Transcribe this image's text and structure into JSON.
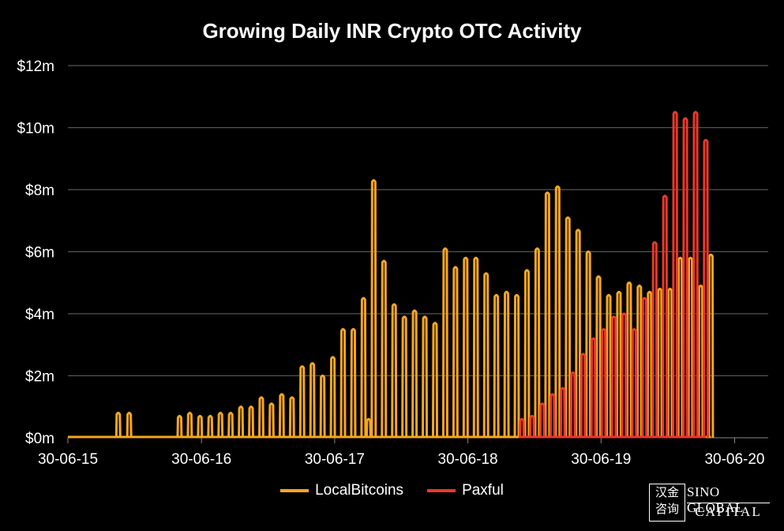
{
  "chart_data": {
    "type": "bar",
    "title": "Growing Daily INR Crypto OTC Activity",
    "y_ticks": [
      "$0m",
      "$2m",
      "$4m",
      "$6m",
      "$8m",
      "$10m",
      "$12m"
    ],
    "ylim": [
      0,
      12
    ],
    "x_ticks": [
      "30-06-15",
      "30-06-16",
      "30-06-17",
      "30-06-18",
      "30-06-19",
      "30-06-20"
    ],
    "xlim": [
      "2015-06-30",
      "2020-09-30"
    ],
    "grid": true,
    "legend_position": "bottom",
    "series": [
      {
        "name": "LocalBitcoins",
        "color": "#f5a623",
        "points": [
          [
            "2015-11-15",
            0.8
          ],
          [
            "2015-12-15",
            0.8
          ],
          [
            "2016-05-01",
            0.7
          ],
          [
            "2016-05-29",
            0.8
          ],
          [
            "2016-06-26",
            0.7
          ],
          [
            "2016-07-24",
            0.7
          ],
          [
            "2016-08-21",
            0.8
          ],
          [
            "2016-09-18",
            0.8
          ],
          [
            "2016-10-16",
            1.0
          ],
          [
            "2016-11-13",
            1.0
          ],
          [
            "2016-12-11",
            1.3
          ],
          [
            "2017-01-08",
            1.1
          ],
          [
            "2017-02-05",
            1.4
          ],
          [
            "2017-03-05",
            1.3
          ],
          [
            "2017-04-02",
            2.3
          ],
          [
            "2017-04-30",
            2.4
          ],
          [
            "2017-05-28",
            2.0
          ],
          [
            "2017-06-25",
            2.6
          ],
          [
            "2017-07-23",
            3.5
          ],
          [
            "2017-08-20",
            3.5
          ],
          [
            "2017-09-17",
            4.5
          ],
          [
            "2017-10-01",
            0.6
          ],
          [
            "2017-10-15",
            8.3
          ],
          [
            "2017-11-12",
            5.7
          ],
          [
            "2017-12-10",
            4.3
          ],
          [
            "2018-01-07",
            3.9
          ],
          [
            "2018-02-04",
            4.1
          ],
          [
            "2018-03-04",
            3.9
          ],
          [
            "2018-04-01",
            3.7
          ],
          [
            "2018-04-29",
            6.1
          ],
          [
            "2018-05-27",
            5.5
          ],
          [
            "2018-06-24",
            5.8
          ],
          [
            "2018-07-22",
            5.8
          ],
          [
            "2018-08-19",
            5.3
          ],
          [
            "2018-09-16",
            4.6
          ],
          [
            "2018-10-14",
            4.7
          ],
          [
            "2018-11-11",
            4.6
          ],
          [
            "2018-12-09",
            5.4
          ],
          [
            "2019-01-06",
            6.1
          ],
          [
            "2019-02-03",
            7.9
          ],
          [
            "2019-03-03",
            8.1
          ],
          [
            "2019-03-31",
            7.1
          ],
          [
            "2019-04-28",
            6.7
          ],
          [
            "2019-05-26",
            6.0
          ],
          [
            "2019-06-23",
            5.2
          ],
          [
            "2019-07-21",
            4.6
          ],
          [
            "2019-08-18",
            4.7
          ],
          [
            "2019-09-15",
            5.0
          ],
          [
            "2019-10-13",
            4.9
          ],
          [
            "2019-11-10",
            4.7
          ],
          [
            "2019-12-08",
            4.8
          ],
          [
            "2020-01-05",
            4.8
          ],
          [
            "2020-02-02",
            5.8
          ],
          [
            "2020-03-01",
            5.8
          ],
          [
            "2020-03-29",
            4.9
          ],
          [
            "2020-04-26",
            5.9
          ]
        ]
      },
      {
        "name": "Paxful",
        "color": "#e8392c",
        "points": [
          [
            "2018-11-25",
            0.6
          ],
          [
            "2018-12-23",
            0.7
          ],
          [
            "2019-01-20",
            1.1
          ],
          [
            "2019-02-17",
            1.4
          ],
          [
            "2019-03-17",
            1.6
          ],
          [
            "2019-04-14",
            2.1
          ],
          [
            "2019-05-12",
            2.7
          ],
          [
            "2019-06-09",
            3.2
          ],
          [
            "2019-07-07",
            3.5
          ],
          [
            "2019-08-04",
            3.9
          ],
          [
            "2019-09-01",
            4.0
          ],
          [
            "2019-09-29",
            3.5
          ],
          [
            "2019-10-27",
            4.5
          ],
          [
            "2019-11-24",
            6.3
          ],
          [
            "2019-12-22",
            7.8
          ],
          [
            "2020-01-19",
            10.5
          ],
          [
            "2020-02-16",
            10.3
          ],
          [
            "2020-03-15",
            10.5
          ],
          [
            "2020-04-12",
            9.6
          ]
        ]
      }
    ]
  },
  "logo": {
    "mark_text": "汉金\n咨询",
    "line1": "SINO GLOBAL",
    "line2": "CAPITAL"
  }
}
